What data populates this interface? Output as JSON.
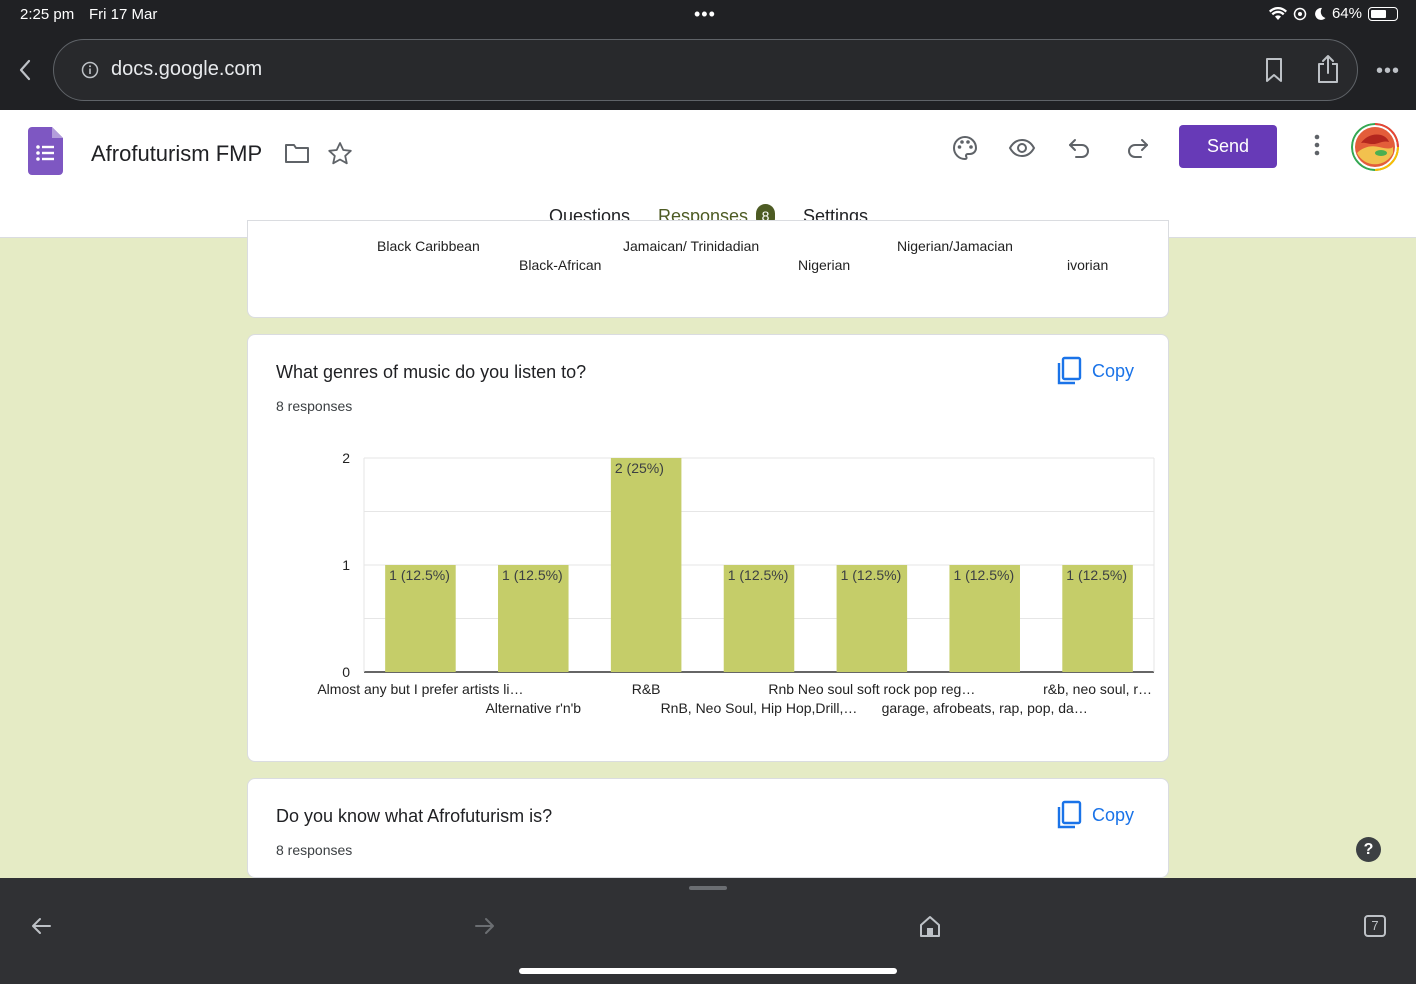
{
  "status": {
    "time": "2:25 pm",
    "date": "Fri 17 Mar",
    "battery": "64%",
    "battery_level": 0.64
  },
  "browser": {
    "url": "docs.google.com"
  },
  "form": {
    "title": "Afrofuturism FMP",
    "send_label": "Send",
    "tabs": [
      {
        "label": "Questions"
      },
      {
        "label": "Responses",
        "badge": "8"
      },
      {
        "label": "Settings"
      }
    ]
  },
  "prev_card": {
    "labels": [
      "Black Caribbean",
      "Black-African",
      "Jamaican/ Trinidadian",
      "Nigerian",
      "Nigerian/Jamacian",
      "ivorian"
    ]
  },
  "q_genres": {
    "title": "What genres of music do you listen to?",
    "responses": "8 responses",
    "copy_label": "Copy"
  },
  "q_afro": {
    "title": "Do  you know what Afrofuturism is?",
    "responses": "8 responses",
    "copy_label": "Copy"
  },
  "chart_data": {
    "type": "bar",
    "categories": [
      "Almost any but I prefer artists li…",
      "Alternative r'n'b",
      "R&B",
      "RnB, Neo Soul, Hip Hop,Drill,…",
      "Rnb Neo soul soft rock pop reg…",
      "garage, afrobeats, rap, pop, da…",
      "r&b, neo soul, r…"
    ],
    "values": [
      1,
      1,
      2,
      1,
      1,
      1,
      1
    ],
    "data_labels": [
      "1 (12.5%)",
      "1 (12.5%)",
      "2 (25%)",
      "1 (12.5%)",
      "1 (12.5%)",
      "1 (12.5%)",
      "1 (12.5%)"
    ],
    "yticks": [
      "0",
      "1",
      "2"
    ],
    "ylim": [
      0,
      2
    ],
    "bar_color": "#c5cd69",
    "grid": true
  },
  "bottom": {
    "tab_count": "7"
  },
  "help_label": "?"
}
